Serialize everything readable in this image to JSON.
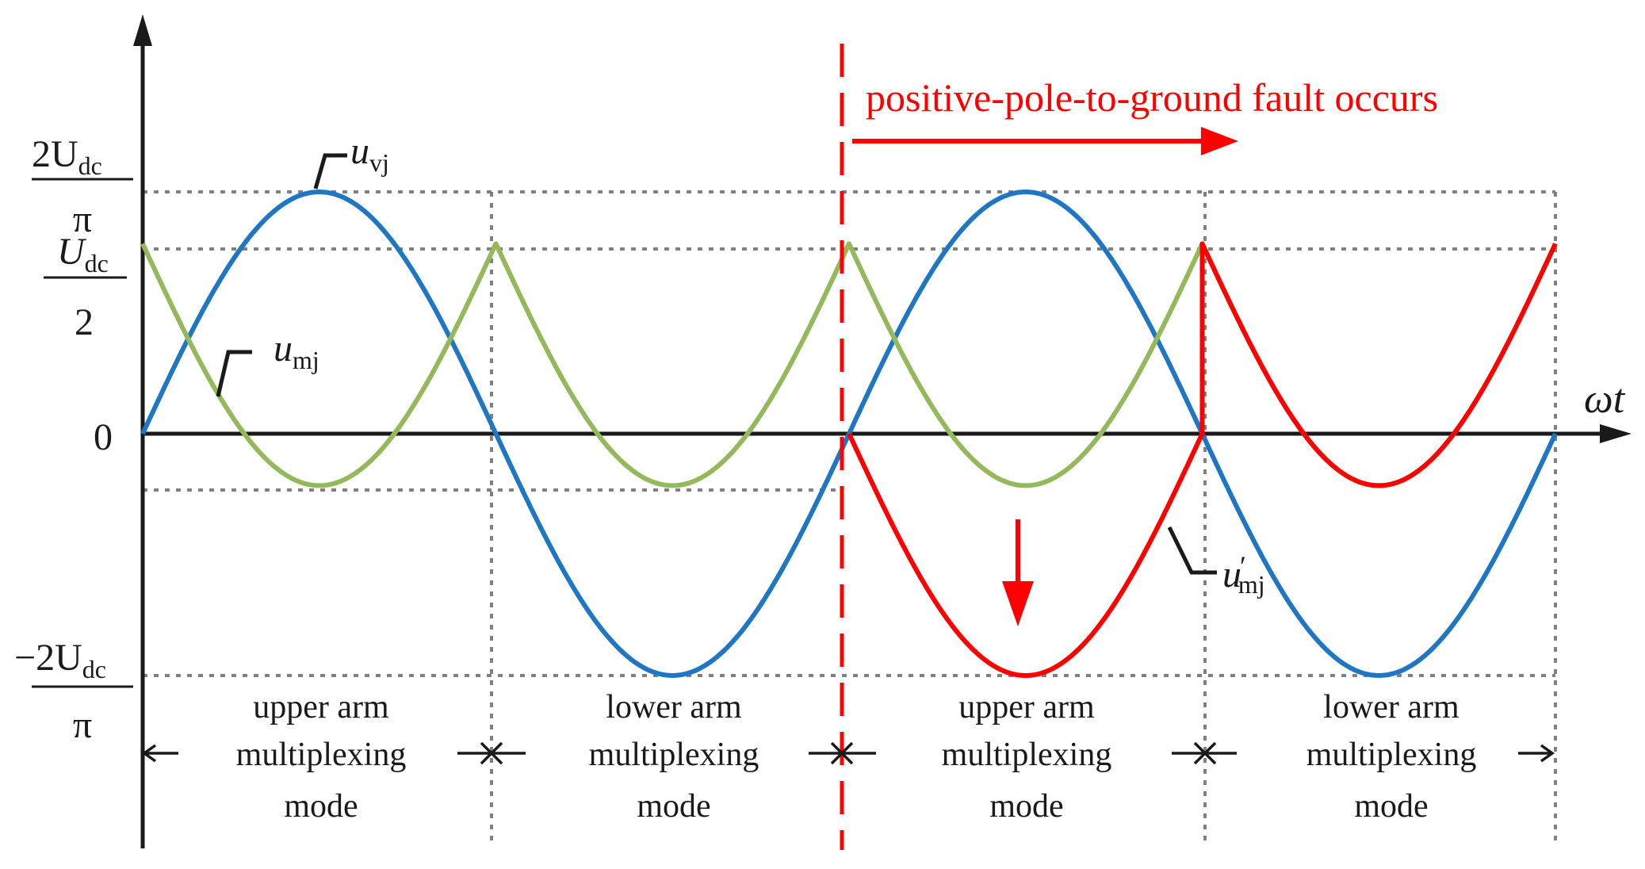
{
  "diagram": {
    "y_axis_labels": {
      "pos_peak_num": "2U",
      "pos_peak_sub": "dc",
      "pos_peak_den": "π",
      "half_num": "U",
      "half_sub": "dc",
      "half_den": "2",
      "zero": "0",
      "neg_peak_num": "−2U",
      "neg_peak_sub": "dc",
      "neg_peak_den": "π"
    },
    "x_axis_label": "ωt",
    "curve_labels": {
      "uvj_main": "u",
      "uvj_sub": "vj",
      "umj_main": "u",
      "umj_sub": "mj",
      "umj_fault_main": "u",
      "umj_fault_prime": "′",
      "umj_fault_sub": "mj"
    },
    "fault_text": "positive-pole-to-ground fault occurs",
    "modes": [
      {
        "line1": "upper arm",
        "line2": "multiplexing",
        "line3": "mode"
      },
      {
        "line1": "lower arm",
        "line2": "multiplexing",
        "line3": "mode"
      },
      {
        "line1": "upper arm",
        "line2": "multiplexing",
        "line3": "mode"
      },
      {
        "line1": "lower arm",
        "line2": "multiplexing",
        "line3": "mode"
      }
    ],
    "colors": {
      "uvj": "#1f77c4",
      "umj": "#93b95a",
      "umj_fault": "#ff0000",
      "axis": "#1a1a1a",
      "grid": "#808080",
      "fault_marker": "#ff0000"
    },
    "levels": {
      "pos_peak": 0.6366,
      "half": 0.5,
      "zero": 0,
      "neg_peak": -0.6366,
      "umj_min": -0.1366
    }
  }
}
